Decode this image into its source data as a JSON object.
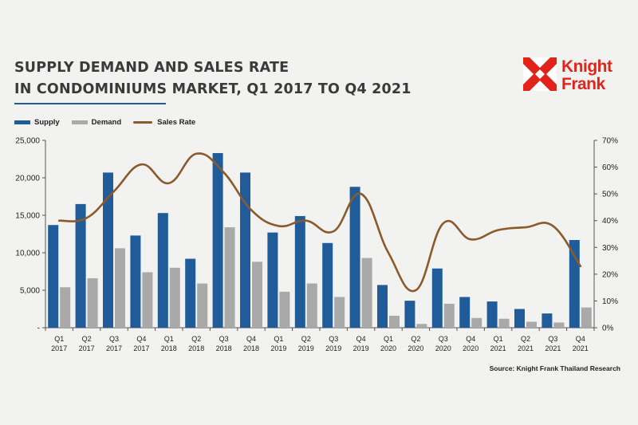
{
  "title_line1": "SUPPLY DEMAND AND SALES RATE",
  "title_line2": "IN CONDOMINIUMS MARKET, Q1 2017 TO Q4 2021",
  "logo": {
    "line1": "Knight",
    "line2": "Frank",
    "color": "#e2231a"
  },
  "source": "Source: Knight Frank Thailand Research",
  "colors": {
    "supply": "#1f5c99",
    "demand": "#a9a9a9",
    "sales_rate": "#8b5a2b"
  },
  "chart_data": {
    "type": "bar",
    "categories": [
      [
        "Q1",
        "2017"
      ],
      [
        "Q2",
        "2017"
      ],
      [
        "Q3",
        "2017"
      ],
      [
        "Q4",
        "2017"
      ],
      [
        "Q1",
        "2018"
      ],
      [
        "Q2",
        "2018"
      ],
      [
        "Q3",
        "2018"
      ],
      [
        "Q4",
        "2018"
      ],
      [
        "Q1",
        "2019"
      ],
      [
        "Q2",
        "2019"
      ],
      [
        "Q3",
        "2019"
      ],
      [
        "Q4",
        "2019"
      ],
      [
        "Q1",
        "2020"
      ],
      [
        "Q2",
        "2020"
      ],
      [
        "Q3",
        "2020"
      ],
      [
        "Q4",
        "2020"
      ],
      [
        "Q1",
        "2021"
      ],
      [
        "Q2",
        "2021"
      ],
      [
        "Q3",
        "2021"
      ],
      [
        "Q4",
        "2021"
      ]
    ],
    "series": [
      {
        "name": "Supply",
        "kind": "bar",
        "axis": "left",
        "values": [
          13700,
          16500,
          20700,
          12300,
          15300,
          9200,
          23300,
          20700,
          12700,
          14900,
          11300,
          18800,
          5700,
          3600,
          7900,
          4100,
          3500,
          2500,
          1900,
          11700
        ]
      },
      {
        "name": "Demand",
        "kind": "bar",
        "axis": "left",
        "values": [
          5400,
          6600,
          10600,
          7400,
          8000,
          5900,
          13400,
          8800,
          4800,
          5900,
          4100,
          9300,
          1600,
          500,
          3200,
          1300,
          1200,
          800,
          700,
          2700
        ]
      },
      {
        "name": "Sales Rate",
        "kind": "line",
        "axis": "right",
        "values": [
          40,
          41,
          51,
          61,
          54,
          65,
          58,
          44,
          38,
          40,
          36,
          50,
          28,
          14,
          39,
          33,
          36.5,
          37.5,
          38,
          23
        ]
      }
    ],
    "left_axis": {
      "ylim": [
        0,
        25000
      ],
      "ticks": [
        "-",
        "5,000",
        "10,000",
        "15,000",
        "20,000",
        "25,000"
      ]
    },
    "right_axis": {
      "ylim": [
        0,
        70
      ],
      "ticks": [
        "0%",
        "10%",
        "20%",
        "30%",
        "40%",
        "50%",
        "60%",
        "70%"
      ]
    },
    "legend_position": "top-left",
    "grid": false
  }
}
